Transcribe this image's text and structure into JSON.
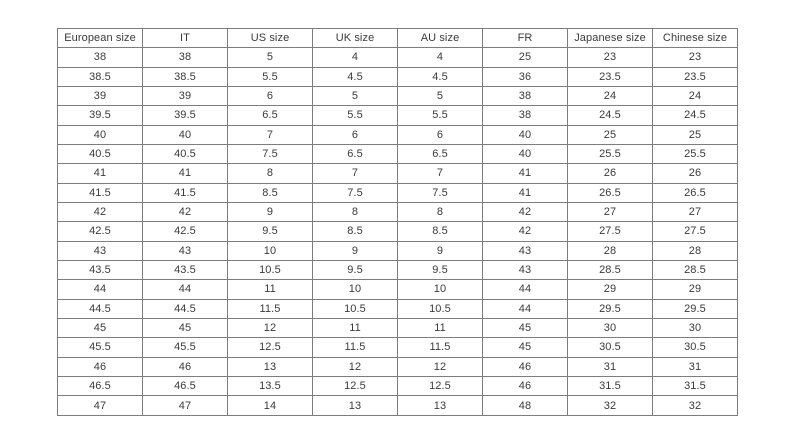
{
  "page": {
    "background": "#ffffff"
  },
  "style": {
    "background_color": "#ffffff",
    "border_color": "#7d7d7d",
    "text_color": "#3b3b3b"
  },
  "chart_data": {
    "type": "table",
    "title": "",
    "headers": [
      "European size",
      "IT",
      "US size",
      "UK size",
      "AU size",
      "FR",
      "Japanese size",
      "Chinese size"
    ],
    "rows": [
      [
        "38",
        "38",
        "5",
        "4",
        "4",
        "25",
        "23",
        "23"
      ],
      [
        "38.5",
        "38.5",
        "5.5",
        "4.5",
        "4.5",
        "36",
        "23.5",
        "23.5"
      ],
      [
        "39",
        "39",
        "6",
        "5",
        "5",
        "38",
        "24",
        "24"
      ],
      [
        "39.5",
        "39.5",
        "6.5",
        "5.5",
        "5.5",
        "38",
        "24.5",
        "24.5"
      ],
      [
        "40",
        "40",
        "7",
        "6",
        "6",
        "40",
        "25",
        "25"
      ],
      [
        "40.5",
        "40.5",
        "7.5",
        "6.5",
        "6.5",
        "40",
        "25.5",
        "25.5"
      ],
      [
        "41",
        "41",
        "8",
        "7",
        "7",
        "41",
        "26",
        "26"
      ],
      [
        "41.5",
        "41.5",
        "8.5",
        "7.5",
        "7.5",
        "41",
        "26.5",
        "26.5"
      ],
      [
        "42",
        "42",
        "9",
        "8",
        "8",
        "42",
        "27",
        "27"
      ],
      [
        "42.5",
        "42.5",
        "9.5",
        "8.5",
        "8.5",
        "42",
        "27.5",
        "27.5"
      ],
      [
        "43",
        "43",
        "10",
        "9",
        "9",
        "43",
        "28",
        "28"
      ],
      [
        "43.5",
        "43.5",
        "10.5",
        "9.5",
        "9.5",
        "43",
        "28.5",
        "28.5"
      ],
      [
        "44",
        "44",
        "11",
        "10",
        "10",
        "44",
        "29",
        "29"
      ],
      [
        "44.5",
        "44.5",
        "11.5",
        "10.5",
        "10.5",
        "44",
        "29.5",
        "29.5"
      ],
      [
        "45",
        "45",
        "12",
        "11",
        "11",
        "45",
        "30",
        "30"
      ],
      [
        "45.5",
        "45.5",
        "12.5",
        "11.5",
        "11.5",
        "45",
        "30.5",
        "30.5"
      ],
      [
        "46",
        "46",
        "13",
        "12",
        "12",
        "46",
        "31",
        "31"
      ],
      [
        "46.5",
        "46.5",
        "13.5",
        "12.5",
        "12.5",
        "46",
        "31.5",
        "31.5"
      ],
      [
        "47",
        "47",
        "14",
        "13",
        "13",
        "48",
        "32",
        "32"
      ]
    ]
  }
}
